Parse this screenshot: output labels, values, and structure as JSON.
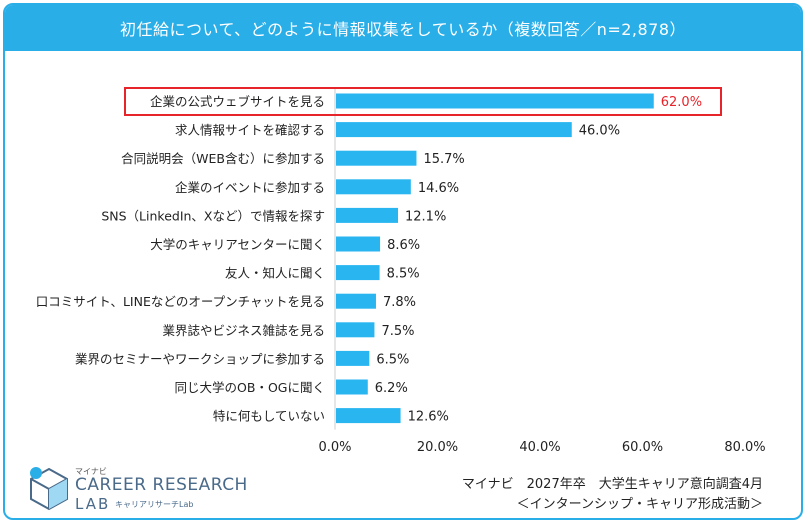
{
  "header": {
    "title": "初任給について、どのように情報収集をしているか（複数回答／n=2,878）"
  },
  "chart_data": {
    "type": "bar",
    "orientation": "horizontal",
    "categories": [
      "企業の公式ウェブサイトを見る",
      "求人情報サイトを確認する",
      "合同説明会（WEB含む）に参加する",
      "企業のイベントに参加する",
      "SNS（LinkedIn、Xなど）で情報を探す",
      "大学のキャリアセンターに聞く",
      "友人・知人に聞く",
      "口コミサイト、LINEなどのオープンチャットを見る",
      "業界誌やビジネス雑誌を見る",
      "業界のセミナーやワークショップに参加する",
      "同じ大学のOB・OGに聞く",
      "特に何もしていない"
    ],
    "values": [
      62.0,
      46.0,
      15.7,
      14.6,
      12.1,
      8.6,
      8.5,
      7.8,
      7.5,
      6.5,
      6.2,
      12.6
    ],
    "value_labels": [
      "62.0%",
      "46.0%",
      "15.7%",
      "14.6%",
      "12.1%",
      "8.6%",
      "8.5%",
      "7.8%",
      "7.5%",
      "6.5%",
      "6.2%",
      "12.6%"
    ],
    "xlim": [
      0,
      80
    ],
    "x_ticks": [
      "0.0%",
      "20.0%",
      "40.0%",
      "60.0%",
      "80.0%"
    ],
    "highlight_index": 0,
    "bar_color": "#29b6f0",
    "highlight_color": "#e8242b",
    "grid": false
  },
  "source": {
    "line1": "マイナビ　2027年卒　大学生キャリア意向調査4月",
    "line2": "＜インターンシップ・キャリア形成活動＞"
  },
  "logo": {
    "small": "マイナビ",
    "main": "CAREER RESEARCH",
    "lab": "LAB",
    "sub": "キャリアリサーチLab"
  }
}
